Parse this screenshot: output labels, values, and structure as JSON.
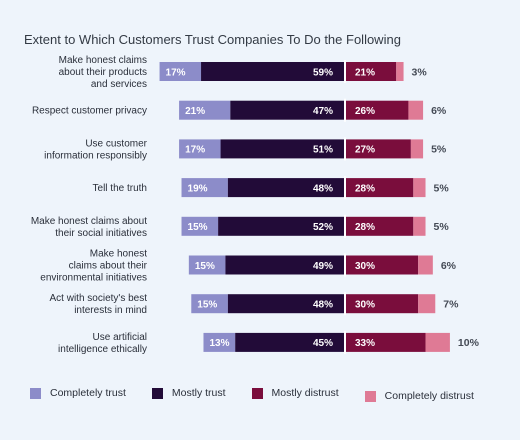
{
  "chart_data": {
    "type": "bar",
    "title": "Extent to Which Customers Trust Companies To Do  the Following",
    "categories": [
      [
        "Make honest claims",
        "about their products",
        "and services"
      ],
      [
        "Respect customer privacy"
      ],
      [
        "Use customer",
        "information responsibly"
      ],
      [
        "Tell the truth"
      ],
      [
        "Make honest claims about",
        "their social initiatives"
      ],
      [
        "Make honest",
        "claims about their",
        "environmental initiatives"
      ],
      [
        "Act with society's best",
        "interests in mind"
      ],
      [
        "Use artificial",
        "intelligence ethically"
      ]
    ],
    "series": [
      {
        "name": "Completely trust",
        "color": "#8c8cc9",
        "values": [
          17,
          21,
          17,
          19,
          15,
          15,
          15,
          13
        ]
      },
      {
        "name": "Mostly trust",
        "color": "#220b38",
        "values": [
          59,
          47,
          51,
          48,
          52,
          49,
          48,
          45
        ]
      },
      {
        "name": "Mostly distrust",
        "color": "#7a0d3c",
        "values": [
          21,
          26,
          27,
          28,
          28,
          30,
          30,
          33
        ]
      },
      {
        "name": "Completely distrust",
        "color": "#df7a95",
        "values": [
          3,
          6,
          5,
          5,
          5,
          6,
          7,
          10
        ]
      }
    ],
    "value_suffix": "%",
    "legend_position": "bottom"
  }
}
